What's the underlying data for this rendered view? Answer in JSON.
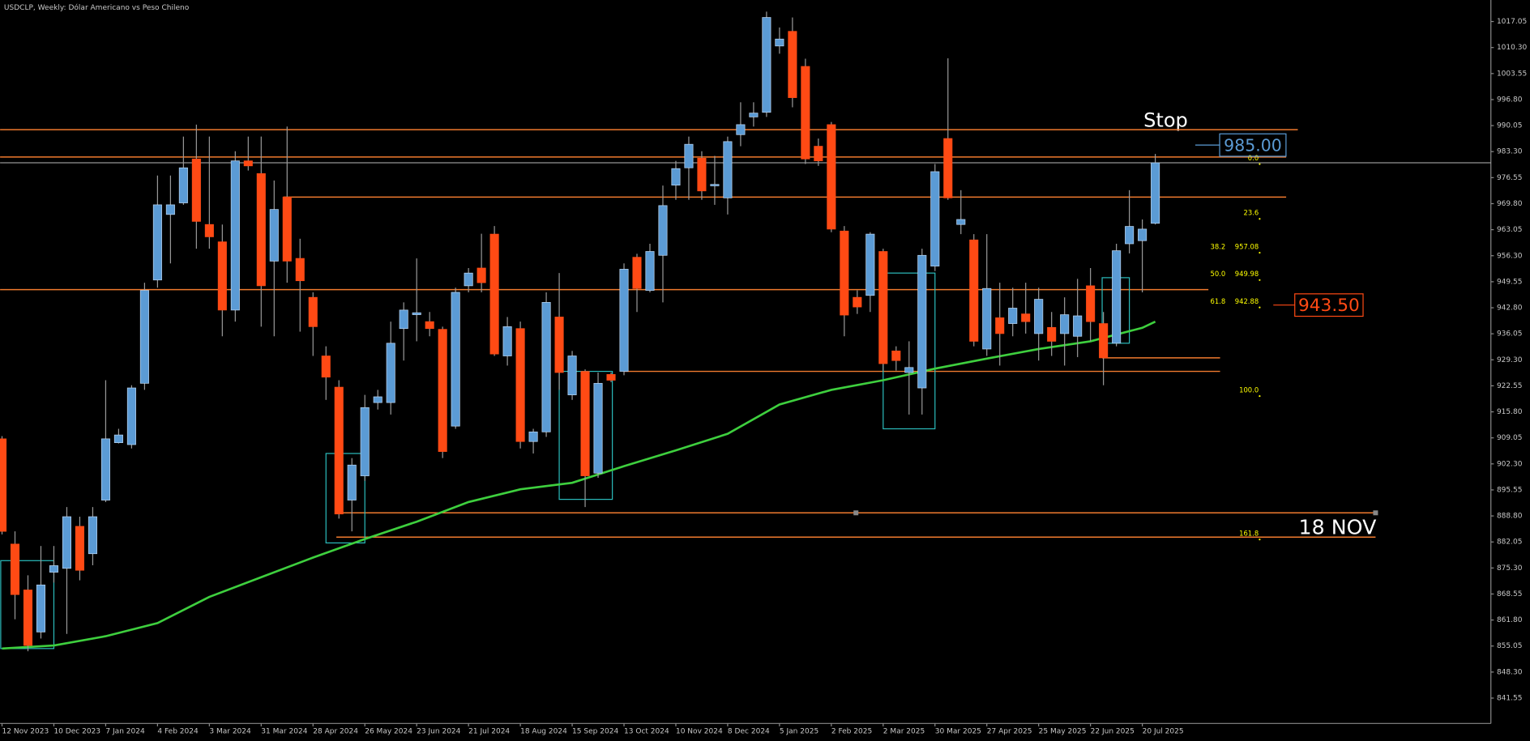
{
  "chart_data": {
    "type": "candlestick",
    "title": "USDCLP, Weekly:  Dólar Americano vs Peso Chileno",
    "categories": [
      "12 Nov 2023",
      null,
      null,
      null,
      "10 Dec 2023",
      null,
      null,
      null,
      "7 Jan 2024",
      null,
      null,
      null,
      "4 Feb 2024",
      null,
      null,
      null,
      "3 Mar 2024",
      null,
      null,
      null,
      "31 Mar 2024",
      null,
      null,
      null,
      "28 Apr 2024",
      null,
      null,
      null,
      "26 May 2024",
      null,
      null,
      null,
      "23 Jun 2024",
      null,
      null,
      null,
      "21 Jul 2024",
      null,
      null,
      null,
      "18 Aug 2024",
      null,
      null,
      null,
      "15 Sep 2024",
      null,
      null,
      null,
      "13 Oct 2024",
      null,
      null,
      null,
      "10 Nov 2024",
      null,
      null,
      null,
      "8 Dec 2024",
      null,
      null,
      null,
      "5 Jan 2025",
      null,
      null,
      null,
      "2 Feb 2025",
      null,
      null,
      null,
      "2 Mar 2025",
      null,
      null,
      null,
      "30 Mar 2025",
      null,
      null,
      null,
      "27 Apr 2025",
      null,
      null,
      null,
      "25 May 2025",
      null,
      null,
      null,
      "22 Jun 2025",
      null,
      null,
      null,
      "20 Jul 2025",
      null
    ],
    "open": [
      908.8,
      881.5,
      869.6,
      858.7,
      874.2,
      875.2,
      886.1,
      879.0,
      892.9,
      907.8,
      907.3,
      923.2,
      950.0,
      967.0,
      970.0,
      981.4,
      964.4,
      959.9,
      942.2,
      980.9,
      977.6,
      954.9,
      971.5,
      955.6,
      945.5,
      930.3,
      922.2,
      892.9,
      899.2,
      918.2,
      918.2,
      937.4,
      941.0,
      939.2,
      937.2,
      912.1,
      948.5,
      953.1,
      961.9,
      930.3,
      937.4,
      908.1,
      910.6,
      940.4,
      920.2,
      926.3,
      899.9,
      925.5,
      926.3,
      955.9,
      947.3,
      956.4,
      974.6,
      979.1,
      981.6,
      974.6,
      971.3,
      987.7,
      992.3,
      993.5,
      1010.7,
      1014.5,
      1005.4,
      984.7,
      990.3,
      962.7,
      945.5,
      946.0,
      957.4,
      931.6,
      926.0,
      922.0,
      953.6,
      986.7,
      964.4,
      960.4,
      932.1,
      940.2,
      938.7,
      941.2,
      936.1,
      937.7,
      936.1,
      935.4,
      948.5,
      938.7,
      933.6,
      959.4,
      960.2,
      964.7
    ],
    "high": [
      909.5,
      884.8,
      873.4,
      881.0,
      881.0,
      891.1,
      888.6,
      891.1,
      924.0,
      911.4,
      922.7,
      949.3,
      977.1,
      977.1,
      987.2,
      990.3,
      987.2,
      964.4,
      983.4,
      987.2,
      987.2,
      975.8,
      989.8,
      960.7,
      946.8,
      932.8,
      924.0,
      903.8,
      920.2,
      921.5,
      939.2,
      944.2,
      955.6,
      941.7,
      937.9,
      948.0,
      953.1,
      962.0,
      964.0,
      940.4,
      939.2,
      911.4,
      946.8,
      951.8,
      931.6,
      926.8,
      926.0,
      926.0,
      954.3,
      956.8,
      959.4,
      974.5,
      980.9,
      987.2,
      983.4,
      982.2,
      987.2,
      996.1,
      996.1,
      1019.6,
      1015.5,
      1018.1,
      1007.4,
      986.7,
      991.0,
      964.0,
      947.3,
      962.4,
      958.1,
      932.8,
      934.1,
      958.1,
      980.1,
      1007.5,
      973.3,
      961.9,
      961.9,
      949.3,
      948.0,
      949.3,
      948.0,
      941.7,
      945.5,
      950.3,
      953.1,
      941.7,
      959.4,
      973.3,
      965.7,
      982.7
    ],
    "low": [
      884.0,
      862.0,
      853.7,
      857.0,
      871.5,
      858.2,
      872.1,
      876.0,
      892.4,
      907.6,
      906.3,
      921.5,
      948.0,
      954.3,
      969.5,
      958.1,
      958.1,
      935.4,
      939.2,
      978.4,
      937.9,
      935.4,
      949.3,
      936.6,
      930.3,
      918.9,
      888.1,
      884.8,
      897.9,
      916.4,
      915.1,
      929.1,
      934.1,
      935.4,
      903.8,
      911.4,
      946.8,
      946.8,
      930.3,
      927.8,
      906.3,
      905.0,
      909.3,
      921.5,
      918.9,
      891.1,
      898.7,
      923.5,
      925.3,
      941.7,
      946.8,
      944.2,
      970.8,
      970.8,
      970.8,
      969.5,
      967.0,
      984.7,
      989.8,
      992.3,
      1008.7,
      994.8,
      980.1,
      979.6,
      962.4,
      935.4,
      941.2,
      941.7,
      926.5,
      926.5,
      915.1,
      915.1,
      952.3,
      970.8,
      961.9,
      932.8,
      930.3,
      927.8,
      935.4,
      936.1,
      929.1,
      930.3,
      927.8,
      930.0,
      934.1,
      922.7,
      932.8,
      956.9,
      946.8,
      964.4
    ],
    "close": [
      884.8,
      868.4,
      855.2,
      870.9,
      875.9,
      888.6,
      874.7,
      888.6,
      908.8,
      909.8,
      922.0,
      947.3,
      969.5,
      969.5,
      979.1,
      965.2,
      961.2,
      942.2,
      980.9,
      979.6,
      948.5,
      968.3,
      954.9,
      949.8,
      937.9,
      924.8,
      889.3,
      902.0,
      916.9,
      919.7,
      933.6,
      942.2,
      941.5,
      937.4,
      905.5,
      946.8,
      951.8,
      949.3,
      930.8,
      937.9,
      908.1,
      910.6,
      944.2,
      926.0,
      930.3,
      899.2,
      923.2,
      924.0,
      952.8,
      947.8,
      957.4,
      969.3,
      978.9,
      985.2,
      973.1,
      974.8,
      985.9,
      990.3,
      993.3,
      1018.1,
      1012.5,
      997.3,
      981.4,
      980.9,
      963.2,
      940.9,
      943.0,
      961.9,
      928.3,
      929.1,
      927.3,
      956.4,
      978.1,
      971.3,
      965.7,
      934.1,
      947.8,
      936.1,
      942.7,
      939.2,
      945.0,
      934.1,
      941.0,
      940.7,
      939.2,
      929.8,
      957.6,
      963.9,
      963.2,
      980.4
    ],
    "up_color": "#5b9bd5",
    "down_color": "#ff4a14",
    "wick_color": "#9a9a9a",
    "ma": {
      "color": "#3ecf3e",
      "x": [
        0,
        4,
        8,
        12,
        16,
        20,
        24,
        28,
        32,
        36,
        40,
        44,
        48,
        52,
        56,
        60,
        64,
        68,
        72,
        76,
        80,
        84,
        88,
        89
      ],
      "values": [
        854.4,
        855.2,
        857.6,
        861.0,
        867.8,
        872.9,
        878.0,
        882.8,
        887.3,
        892.4,
        895.7,
        897.4,
        901.7,
        905.8,
        910.1,
        917.7,
        921.5,
        924.0,
        927.0,
        929.6,
        932.1,
        934.1,
        937.6,
        939.2
      ]
    },
    "xlim": [
      -0.15,
      114.9
    ],
    "ylim": [
      834.97,
      1022.63
    ],
    "yticks": [
      841.55,
      {
        "value": 848.3,
        "label": "848.30"
      },
      855.05,
      {
        "value": 861.8,
        "label": "861.80"
      },
      868.55,
      {
        "value": 875.3,
        "label": "875.30"
      },
      882.05,
      {
        "value": 888.8,
        "label": "888.80"
      },
      895.55,
      {
        "value": 902.3,
        "label": "902.30"
      },
      909.05,
      {
        "value": 915.8,
        "label": "915.80"
      },
      922.55,
      {
        "value": 929.3,
        "label": "929.30"
      },
      936.05,
      {
        "value": 942.8,
        "label": "942.80"
      },
      949.55,
      {
        "value": 956.3,
        "label": "956.30"
      },
      963.05,
      {
        "value": 969.8,
        "label": "969.80"
      },
      976.55,
      {
        "value": 983.3,
        "label": "983.30"
      },
      990.05,
      {
        "value": 996.8,
        "label": "996.80"
      },
      1003.55,
      {
        "value": 1010.3,
        "label": "1010.30"
      },
      1017.05
    ],
    "level_color": "#f07a2e",
    "levels": [
      {
        "value": 989.0,
        "start": -0.15,
        "end": 100.0
      },
      {
        "value": 981.9,
        "start": -0.15,
        "end": 99.1
      },
      {
        "value": 971.5,
        "start": 21.7,
        "end": 99.1
      },
      {
        "value": 947.5,
        "start": -0.15,
        "end": 93.1
      },
      {
        "value": 929.8,
        "start": 84.9,
        "end": 94.0
      },
      {
        "value": 926.3,
        "start": 48.0,
        "end": 94.0
      },
      {
        "value": 889.6,
        "start": 25.8,
        "end": 106.0
      },
      {
        "value": 883.3,
        "start": 25.8,
        "end": 106.0
      }
    ],
    "box_color": "#2bbcbc",
    "boxes": [
      {
        "start": -0.1,
        "end": 4.0,
        "top": 877.2,
        "bottom": 854.4
      },
      {
        "start": 25.0,
        "end": 28.0,
        "top": 905.0,
        "bottom": 881.8
      },
      {
        "start": 43.0,
        "end": 47.1,
        "top": 926.3,
        "bottom": 893.1
      },
      {
        "start": 68.0,
        "end": 72.0,
        "top": 951.8,
        "bottom": 911.4
      },
      {
        "start": 84.9,
        "end": 87.0,
        "top": 950.6,
        "bottom": 933.6
      }
    ],
    "fib_color": "#ffff00",
    "fib": [
      {
        "ratio": "0.0",
        "price": 980.06,
        "price_shown": false
      },
      {
        "ratio": "23.6",
        "price": 965.86,
        "price_shown": false
      },
      {
        "ratio": "38.2",
        "price": 957.08,
        "price_shown": true
      },
      {
        "ratio": "50.0",
        "price": 949.98,
        "price_shown": true
      },
      {
        "ratio": "61.8",
        "price": 942.88,
        "price_shown": true
      },
      {
        "ratio": "100.0",
        "price": 919.89,
        "price_shown": false
      },
      {
        "ratio": "161.8",
        "price": 882.7,
        "price_shown": false
      }
    ],
    "price_marks": [
      {
        "value": 985,
        "label": "985.00",
        "color": "#5b9bd5"
      },
      {
        "value": 943.5,
        "label": "943.50",
        "color": "#ff4a14"
      }
    ],
    "annotations": [
      "Stop",
      "18 NOV"
    ]
  }
}
